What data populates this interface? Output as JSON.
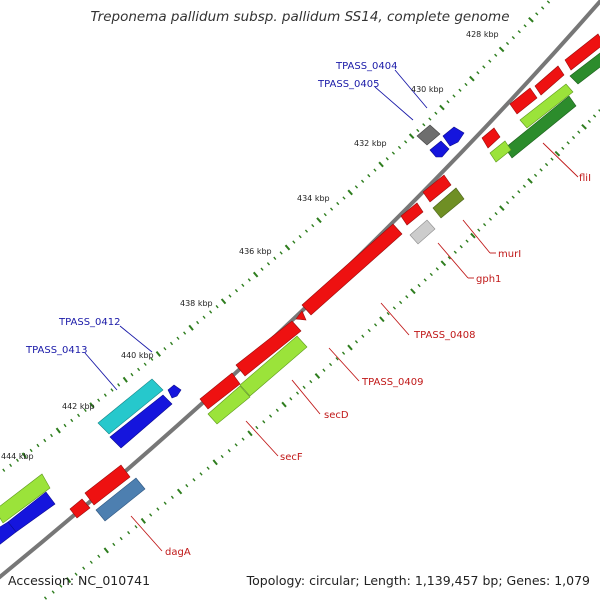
{
  "title": "Treponema pallidum subsp. pallidum SS14, complete genome",
  "footer": {
    "accession": "Accession: NC_010741",
    "summary": "Topology: circular; Length: 1,139,457 bp; Genes: 1,079"
  },
  "colors": {
    "backbone": "#777777",
    "tick": "#2e7d1e",
    "label_blue": "#1a1aa8",
    "label_red": "#c01818"
  },
  "ticks": [
    "428 kbp",
    "430 kbp",
    "432 kbp",
    "434 kbp",
    "436 kbp",
    "438 kbp",
    "440 kbp",
    "442 kbp",
    "444 kbp"
  ],
  "gene_labels": [
    {
      "name": "TPASS_0404",
      "color": "blue"
    },
    {
      "name": "TPASS_0405",
      "color": "blue"
    },
    {
      "name": "TPASS_0412",
      "color": "blue"
    },
    {
      "name": "TPASS_0413",
      "color": "blue"
    },
    {
      "name": "fliI",
      "color": "red"
    },
    {
      "name": "murI",
      "color": "red"
    },
    {
      "name": "gph1",
      "color": "red"
    },
    {
      "name": "TPASS_0408",
      "color": "red"
    },
    {
      "name": "TPASS_0409",
      "color": "red"
    },
    {
      "name": "secD",
      "color": "red"
    },
    {
      "name": "secF",
      "color": "red"
    },
    {
      "name": "dagA",
      "color": "red"
    }
  ]
}
